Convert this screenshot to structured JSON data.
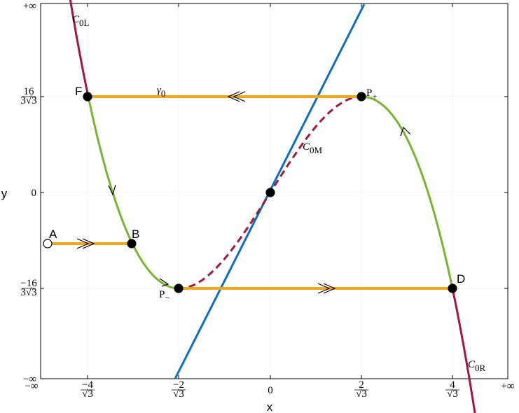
{
  "axes": {
    "x_label": "x",
    "y_label": "y",
    "x_ticks": [
      {
        "text": "−∞"
      },
      {
        "num": "−4",
        "den": "√3"
      },
      {
        "num": "−2",
        "den": "√3"
      },
      {
        "text": "0"
      },
      {
        "num": "2",
        "den": "√3"
      },
      {
        "num": "4",
        "den": "√3"
      },
      {
        "text": "+∞"
      }
    ],
    "y_ticks": [
      {
        "text": "+∞"
      },
      {
        "num": "16",
        "den": "3√3"
      },
      {
        "text": "0"
      },
      {
        "num": "−16",
        "den": "3√3"
      },
      {
        "text": "−∞"
      }
    ]
  },
  "points": [
    {
      "label": "F"
    },
    {
      "label": "A"
    },
    {
      "label": "B"
    },
    {
      "label": "D"
    },
    {
      "base": "P",
      "sub": "−"
    },
    {
      "base": "P",
      "sub": "+"
    }
  ],
  "curve_labels": [
    {
      "base": "C",
      "sub": "0L"
    },
    {
      "base": "γ",
      "sub": "0"
    },
    {
      "base": "C",
      "sub": "0M"
    },
    {
      "base": "C",
      "sub": "0R"
    }
  ]
}
